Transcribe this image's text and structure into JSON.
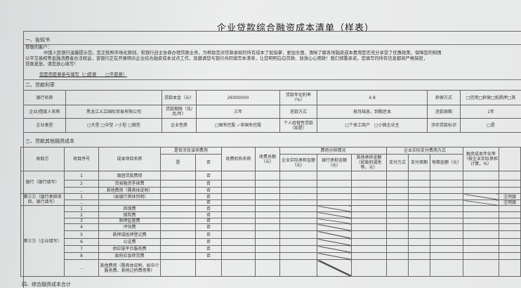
{
  "title": "企业贷款综合融资成本清单（样表）",
  "notice": {
    "section": "一、告知书",
    "salutation": "尊敬的客户：",
    "lines": [
      "中国人民银行温馨提示您，您正按照市场化原则，和银行自主协商办理贷款业务，为帮助您对贷款承担的所有成本了如指掌，更加全面、清晰了解各项融资成本费用是否充分享受了优惠政策，保障您的知情",
      "公平交易权等金融消费者合法权益，该银行正在开展明示企业综合融资成本试点工作，现邀请您与银行共同填写本清单，让您明明白白贷款、放放心心用款！我们郑重承诺，您填写的所有信息都将严格保密，",
      "贷款发放，请您放心填写！"
    ],
    "willing": "您是否愿意参与填写（□愿意　　□不愿意）"
  },
  "loan": {
    "section": "二、贷款利率",
    "rows": [
      [
        "银行名称",
        "",
        "贷款本金（元）",
        "26000000",
        "贷款年化利率（%）",
        "4.8",
        "担保方式",
        "□信用□担保□抵质押□其"
      ],
      [
        "企业/借款人名称",
        "黑龙江义立国际贸易有限公司",
        "贷款期限（日/月/年）",
        "三年",
        "还款方式",
        "按月结息，到期还本",
        "还款周期",
        "1年"
      ],
      [
        "企业类型",
        "□大型 □中型 ✓小型 □微型",
        "企业性质",
        "□国有控股 ✓非国有控股",
        "个人经营性贷款（如是）",
        "□个体工商户　□小微企业主",
        "涉农贷款标识",
        "□是"
      ]
    ]
  },
  "costs": {
    "section": "三、贷款其他融资成本",
    "headers": {
      "payee": "收取方",
      "seq": "项目序号",
      "name": "成本项目名称",
      "involved": "是否涉及该项费用",
      "yes": "是",
      "no": "否",
      "org": "收费机构名称",
      "total": "收费总额（元）",
      "share": "费用分担情况",
      "ent_amt": "企业实际承担金额（元）",
      "bank_amt": "银行承担金额（元）",
      "other_amt": "其他承担金额（如政府减免等，元）",
      "pay": "企业实际支付费用方式",
      "method": "支付方式",
      "cycle": "支付周期",
      "per": "每期金额（元）",
      "rate": "融资成本年化率（按企业实际承担计算，%）"
    },
    "groups": [
      "银行（银行填写）",
      "第三方（银行承担项目，银行填写）",
      "第三方（企业填写）"
    ],
    "rows": [
      {
        "seq": "1",
        "name": "银团贷款费用",
        "no": "否"
      },
      {
        "seq": "2",
        "name": "贸易融资手续费",
        "no": "否"
      },
      {
        "seq": "…",
        "name": "其他费用（需具体说明）",
        "no": "否"
      },
      {
        "seq": "1",
        "name": "（由银行具体列明）",
        "no": "否",
        "note": "注明银"
      },
      {
        "seq": "…",
        "name": "",
        "no": "否",
        "note": "注明银"
      },
      {
        "seq": "1",
        "name": "担保费",
        "no": "否"
      },
      {
        "seq": "2",
        "name": "保险费",
        "no": "否"
      },
      {
        "seq": "3",
        "name": "质押监管费",
        "no": "否"
      },
      {
        "seq": "4",
        "name": "评估费",
        "no": "否"
      },
      {
        "seq": "5",
        "name": "质押或抵押登记费",
        "no": "否"
      },
      {
        "seq": "6",
        "name": "公证费",
        "no": "否"
      },
      {
        "seq": "7",
        "name": "供应链平台服务费",
        "no": "否"
      },
      {
        "seq": "8",
        "name": "政府应急转贷费",
        "no": "否"
      },
      {
        "seq": "…",
        "name": "其他费用（需具体说明，如中介服务费、其他过桥费用等）",
        "no": ""
      }
    ]
  },
  "total_section": "四、综合融资成本合计"
}
